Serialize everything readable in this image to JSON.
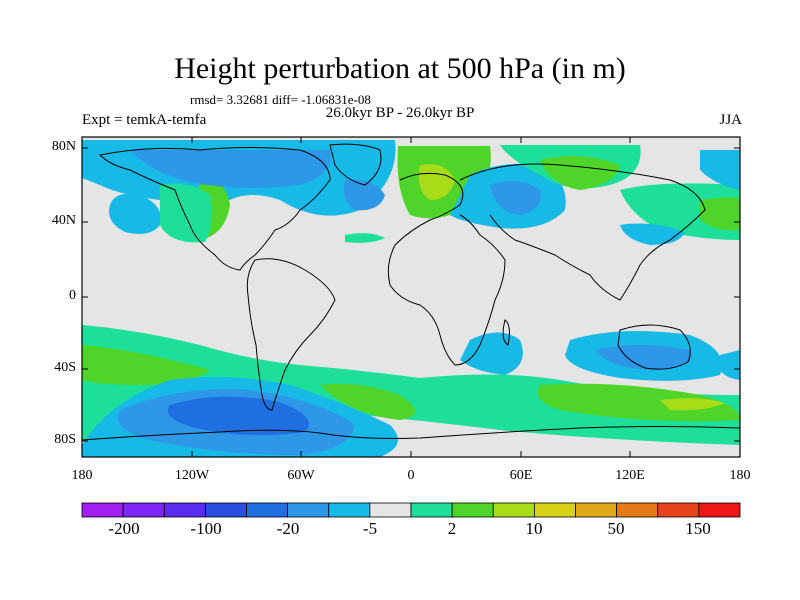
{
  "title": "Height perturbation at 500 hPa (in m)",
  "stats": "rmsd= 3.32681 diff= -1.06831e-08",
  "subtitle_left": "Expt = temkA-temfa",
  "subtitle_center": "26.0kyr BP - 26.0kyr BP",
  "subtitle_right": "JJA",
  "lat_labels": [
    "80N",
    "40N",
    "0",
    "40S",
    "80S"
  ],
  "lon_labels": [
    "180",
    "120W",
    "60W",
    "0",
    "60E",
    "120E",
    "180"
  ],
  "colorbar": {
    "colors": [
      "#a020f0",
      "#7d26f5",
      "#5a2cf0",
      "#2b4de0",
      "#1f6fe0",
      "#2f97e8",
      "#17b9e6",
      "#e5e5e5",
      "#1ddf9a",
      "#4fd42a",
      "#a8dc19",
      "#d7d217",
      "#e0a817",
      "#e57a17",
      "#e8421a",
      "#f01717"
    ],
    "labels": [
      "-200",
      "-100",
      "-20",
      "-5",
      "2",
      "10",
      "50",
      "150"
    ]
  },
  "colors": {
    "land_bg": "#e5e5e5",
    "green": "#4fd42a",
    "teal": "#1ddf9a",
    "cyan": "#17b9e6",
    "blue": "#2f97e8",
    "dark_blue": "#1f6fe0",
    "yellow_green": "#a8dc19"
  }
}
